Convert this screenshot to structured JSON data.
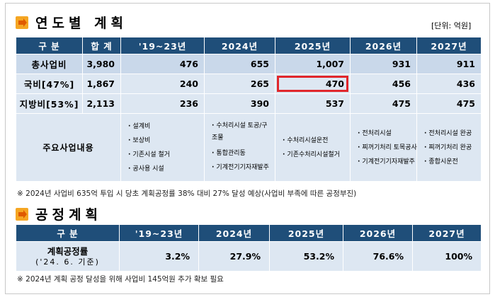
{
  "section1": {
    "title": "연도별 계획",
    "unit": "[단위: 억원]",
    "columns": [
      "구  분",
      "합 계",
      "'19~23년",
      "2024년",
      "2025년",
      "2026년",
      "2027년"
    ],
    "rows": [
      {
        "label": "총사업비",
        "values": [
          "3,980",
          "476",
          "655",
          "1,007",
          "931",
          "911"
        ]
      },
      {
        "label": "국비[47%]",
        "values": [
          "1,867",
          "240",
          "265",
          "470",
          "456",
          "436"
        ]
      },
      {
        "label": "지방비[53%]",
        "values": [
          "2,113",
          "236",
          "390",
          "537",
          "475",
          "475"
        ]
      }
    ],
    "business_label": "주요사업내용",
    "business": [
      [
        "설계비",
        "보상비",
        "기존시설 철거",
        "공사용 시설"
      ],
      [
        "수처리시설 토공/구조물",
        "통합관리동",
        "기계전기기자재발주"
      ],
      [
        "수처리시설운전",
        "기존수처리시설철거"
      ],
      [
        "전처리시설",
        "찌꺼기처리 토목공사",
        "기계전기기자재발주"
      ],
      [
        "전처리시설 완공",
        "찌꺼기처리 완공",
        "종합시운전"
      ]
    ],
    "note": "※ 2024년 사업비 635억 투입 시 당초 계획공정률 38% 대비 27% 달성 예상(사업비 부족에 따른 공정부진)"
  },
  "section2": {
    "title": "공정계획",
    "columns": [
      "구  분",
      "'19~23년",
      "2024년",
      "2025년",
      "2026년",
      "2027년"
    ],
    "row_label": "계획공정률",
    "row_sublabel": "('24. 6. 기준)",
    "values": [
      "3.2%",
      "27.9%",
      "53.2%",
      "76.6%",
      "100%"
    ],
    "note": "※ 2024년 계획 공정 달성을 위해 사업비 145억원 추가 확보 필요"
  },
  "colors": {
    "header_bg": "#1f4e79",
    "cell_bg": "#dde7f2",
    "highlight": "#e0262b",
    "bullet": "#f5a623"
  }
}
